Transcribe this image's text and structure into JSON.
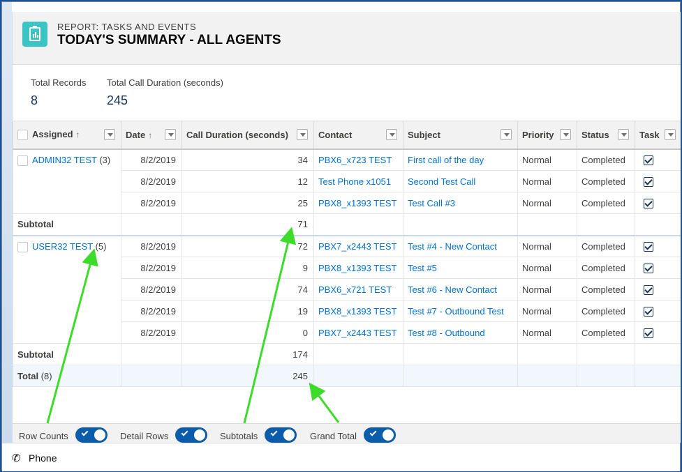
{
  "header": {
    "eyebrow": "REPORT: TASKS AND EVENTS",
    "title": "TODAY'S SUMMARY - ALL AGENTS",
    "icon": "report-icon"
  },
  "summary": [
    {
      "label": "Total Records",
      "value": "8"
    },
    {
      "label": "Total Call Duration (seconds)",
      "value": "245"
    }
  ],
  "columns": [
    "Assigned",
    "Date",
    "Call Duration (seconds)",
    "Contact",
    "Subject",
    "Priority",
    "Status",
    "Task"
  ],
  "sort_indicator": "↑",
  "groups": [
    {
      "name": "ADMIN32 TEST",
      "count": "(3)",
      "rows": [
        {
          "date": "8/2/2019",
          "duration": "34",
          "contact": "PBX6_x723 TEST",
          "subject": "First call of the day",
          "priority": "Normal",
          "status": "Completed"
        },
        {
          "date": "8/2/2019",
          "duration": "12",
          "contact": "Test Phone x1051",
          "subject": "Second Test Call",
          "priority": "Normal",
          "status": "Completed"
        },
        {
          "date": "8/2/2019",
          "duration": "25",
          "contact": "PBX8_x1393 TEST",
          "subject": "Test Call #3",
          "priority": "Normal",
          "status": "Completed"
        }
      ],
      "subtotal_label": "Subtotal",
      "subtotal": "71"
    },
    {
      "name": "USER32 TEST",
      "count": "(5)",
      "rows": [
        {
          "date": "8/2/2019",
          "duration": "72",
          "contact": "PBX7_x2443 TEST",
          "subject": "Test #4 - New Contact",
          "priority": "Normal",
          "status": "Completed"
        },
        {
          "date": "8/2/2019",
          "duration": "9",
          "contact": "PBX8_x1393 TEST",
          "subject": "Test #5",
          "priority": "Normal",
          "status": "Completed"
        },
        {
          "date": "8/2/2019",
          "duration": "74",
          "contact": "PBX6_x721 TEST",
          "subject": "Test #6 - New Contact",
          "priority": "Normal",
          "status": "Completed"
        },
        {
          "date": "8/2/2019",
          "duration": "19",
          "contact": "PBX8_x1393 TEST",
          "subject": "Test #7 - Outbound Test",
          "priority": "Normal",
          "status": "Completed"
        },
        {
          "date": "8/2/2019",
          "duration": "0",
          "contact": "PBX7_x2443 TEST",
          "subject": "Test #8 - Outbound",
          "priority": "Normal",
          "status": "Completed"
        }
      ],
      "subtotal_label": "Subtotal",
      "subtotal": "174"
    }
  ],
  "total": {
    "label": "Total",
    "count": "(8)",
    "value": "245"
  },
  "toggles": [
    {
      "label": "Row Counts",
      "on": true
    },
    {
      "label": "Detail Rows",
      "on": true
    },
    {
      "label": "Subtotals",
      "on": true
    },
    {
      "label": "Grand Total",
      "on": true
    }
  ],
  "utility_bar": {
    "label": "Phone",
    "icon": "phone-icon"
  },
  "colors": {
    "link": "#0070d2",
    "toggle": "#0b5cab",
    "annotation_arrow": "#3ddc2a",
    "icon_bg": "#3bc4c4"
  }
}
